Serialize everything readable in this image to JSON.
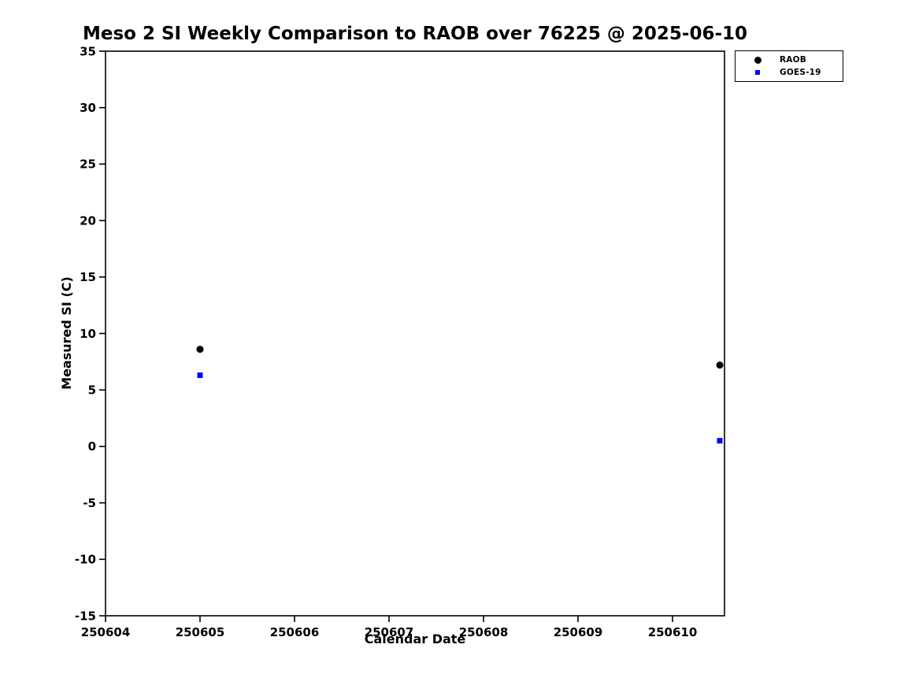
{
  "chart_data": {
    "type": "scatter",
    "title": "Meso 2 SI Weekly Comparison to RAOB over 76225 @ 2025-06-10",
    "xlabel": "Calendar Date",
    "ylabel": "Measured SI (C)",
    "xlim": [
      250604,
      250610.55
    ],
    "ylim": [
      -15,
      35
    ],
    "x_ticks": [
      250604,
      250605,
      250606,
      250607,
      250608,
      250609,
      250610
    ],
    "y_ticks": [
      -15,
      -10,
      -5,
      0,
      5,
      10,
      15,
      20,
      25,
      30,
      35
    ],
    "grid": false,
    "legend_position": "top-right-outside",
    "series": [
      {
        "name": "RAOB",
        "marker": "circle",
        "color": "#000000",
        "points": [
          {
            "x": 250605,
            "y": 8.6
          },
          {
            "x": 250610.5,
            "y": 7.2
          }
        ]
      },
      {
        "name": "GOES-19",
        "marker": "square",
        "color": "#0000ff",
        "points": [
          {
            "x": 250605,
            "y": 6.3
          },
          {
            "x": 250610.5,
            "y": 0.5
          }
        ]
      }
    ]
  }
}
